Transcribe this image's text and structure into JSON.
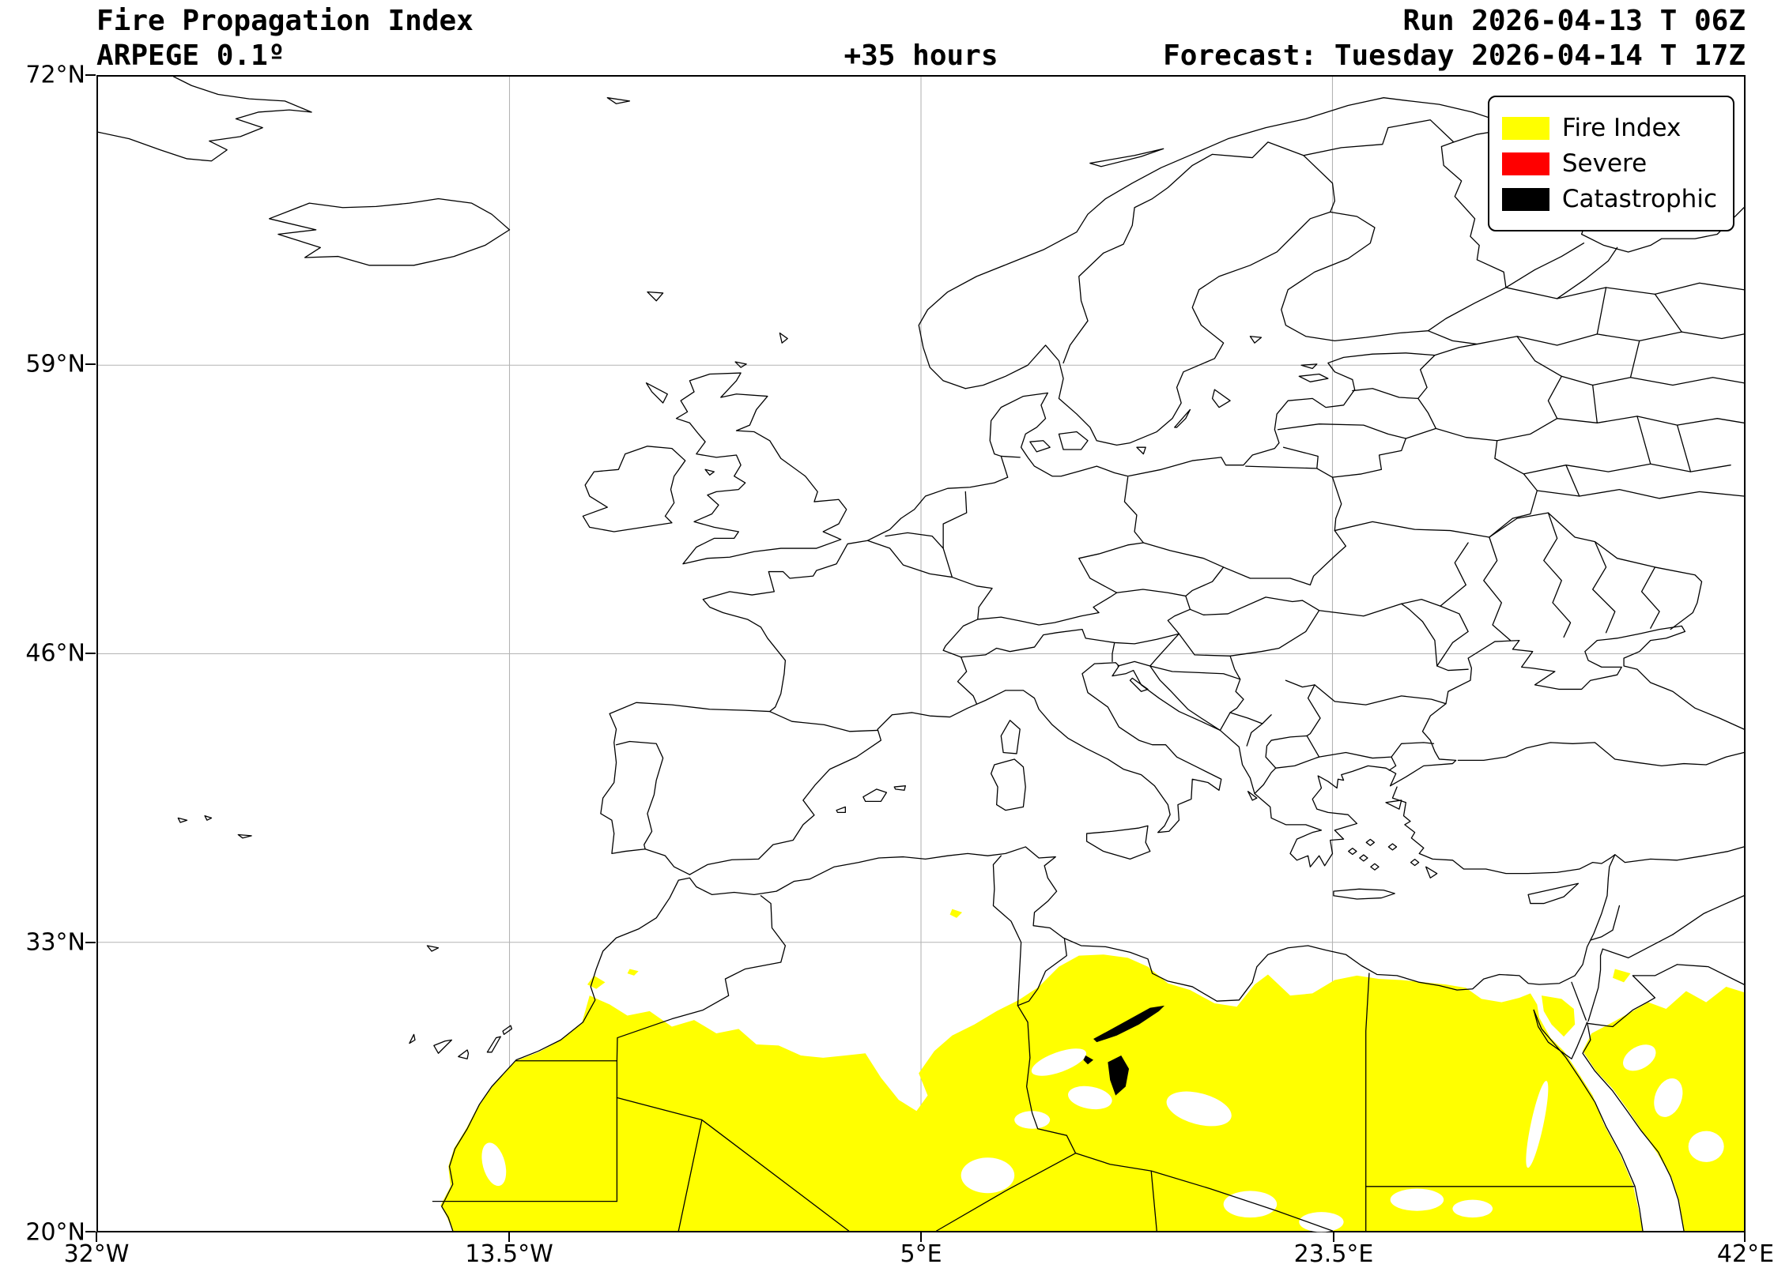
{
  "header": {
    "title": "Fire Propagation Index",
    "model": "ARPEGE 0.1º",
    "lead_time": "+35 hours",
    "run": "Run 2026-04-13 T 06Z",
    "forecast": "Forecast: Tuesday 2026-04-14 T 17Z"
  },
  "legend": {
    "items": [
      {
        "label": "Fire Index",
        "color": "#ffff00"
      },
      {
        "label": "Severe",
        "color": "#ff0000"
      },
      {
        "label": "Catastrophic",
        "color": "#000000"
      }
    ]
  },
  "map": {
    "x_ticks": [
      "32°W",
      "13.5°W",
      "5°E",
      "23.5°E",
      "42°E"
    ],
    "y_ticks": [
      "72°N",
      "59°N",
      "46°N",
      "33°N",
      "20°N"
    ],
    "lon_range": [
      -32,
      42
    ],
    "lat_range": [
      20,
      72
    ],
    "colors": {
      "fire_index": "#ffff00",
      "severe": "#ff0000",
      "catastrophic": "#000000",
      "grid": "#b4b4b4"
    }
  }
}
